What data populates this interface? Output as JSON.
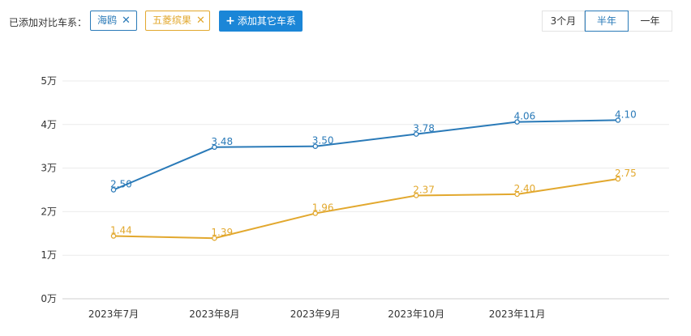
{
  "toolbar": {
    "label": "已添加对比车系：",
    "tags": [
      {
        "name": "海鸥",
        "color": "#2a7ab8"
      },
      {
        "name": "五菱缤果",
        "color": "#e2a82e"
      }
    ],
    "remove_icon": "close-icon",
    "add_button": "添加其它车系",
    "add_icon": "plus-icon",
    "accent": "#1b86d7"
  },
  "range": {
    "options": [
      "3个月",
      "半年",
      "一年"
    ],
    "selected": "半年"
  },
  "chart_data": {
    "type": "line",
    "categories": [
      "2023年7月",
      "2023年8月",
      "2023年9月",
      "2023年10月",
      "2023年11月",
      ""
    ],
    "y_ticks": [
      "0万",
      "1万",
      "2万",
      "3万",
      "4万",
      "5万"
    ],
    "ylim": [
      0,
      5
    ],
    "grid": true,
    "series": [
      {
        "name": "海鸥",
        "color": "#2a7ab8",
        "values": [
          2.5,
          3.48,
          3.5,
          3.78,
          4.06,
          4.1
        ],
        "labels": [
          "2.50",
          "3.48",
          "3.50",
          "3.78",
          "4.06",
          "4.10"
        ]
      },
      {
        "name": "五菱缤果",
        "color": "#e2a82e",
        "values": [
          1.44,
          1.39,
          1.96,
          2.37,
          2.4,
          2.75
        ],
        "labels": [
          "1.44",
          "1.39",
          "1.96",
          "2.37",
          "2.40",
          "2.75"
        ]
      }
    ]
  }
}
